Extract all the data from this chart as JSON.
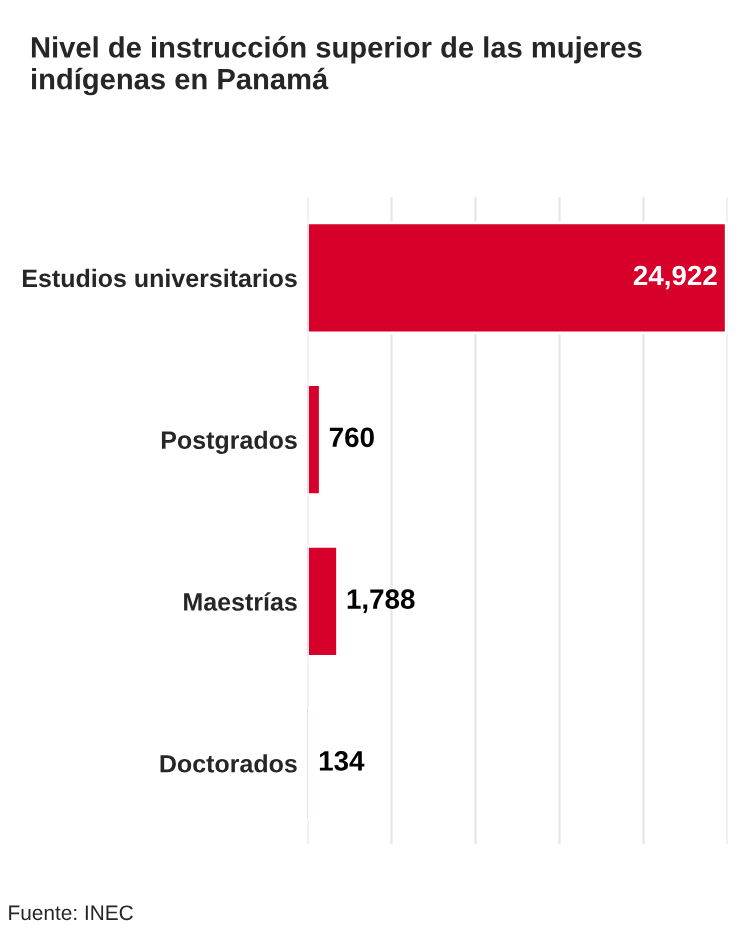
{
  "chart_data": {
    "type": "bar",
    "orientation": "horizontal",
    "title": "Nivel de instrucción superior de las mujeres indígenas en Panamá",
    "categories": [
      "Estudios universitarios",
      "Postgrados",
      "Maestrías",
      "Doctorados"
    ],
    "values": [
      24922,
      760,
      1788,
      134
    ],
    "value_labels": [
      "24,922",
      "760",
      "1,788",
      "134"
    ],
    "color": "#d7002a",
    "xlim": [
      0,
      25000
    ],
    "xticks": [
      {
        "value": 0,
        "label": null
      },
      {
        "value": 5000,
        "label": null
      },
      {
        "value": 10000,
        "label": null
      },
      {
        "value": 15000,
        "label": null
      },
      {
        "value": 20000,
        "label": null
      },
      {
        "value": 25000,
        "label": null
      }
    ],
    "grid": "x",
    "tick_labels": "y",
    "annotations": [
      "Fuente: INEC"
    ]
  }
}
